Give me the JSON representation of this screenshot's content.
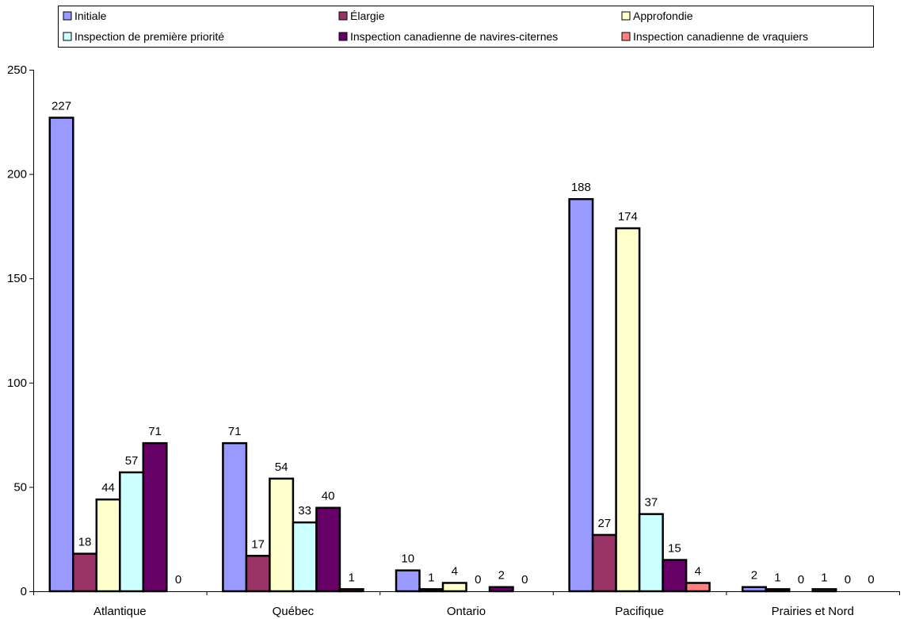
{
  "chart_data": {
    "type": "bar",
    "categories": [
      "Atlantique",
      "Québec",
      "Ontario",
      "Pacifique",
      "Prairies et Nord"
    ],
    "series": [
      {
        "name": "Initiale",
        "color": "#9999ff",
        "values": [
          227,
          71,
          10,
          188,
          2
        ]
      },
      {
        "name": "Élargie",
        "color": "#993366",
        "values": [
          18,
          17,
          1,
          27,
          1
        ]
      },
      {
        "name": "Approfondie",
        "color": "#ffffcc",
        "values": [
          44,
          54,
          4,
          174,
          0
        ]
      },
      {
        "name": "Inspection de première priorité",
        "color": "#ccffff",
        "values": [
          57,
          33,
          0,
          37,
          1
        ]
      },
      {
        "name": "Inspection canadienne de navires-citernes",
        "color": "#660066",
        "values": [
          71,
          40,
          2,
          15,
          0
        ]
      },
      {
        "name": "Inspection canadienne de vraquiers",
        "color": "#ff8080",
        "values": [
          0,
          1,
          0,
          4,
          0
        ]
      }
    ],
    "ylim": [
      0,
      250
    ],
    "yticks": [
      0,
      50,
      100,
      150,
      200,
      250
    ],
    "legend_position": "top",
    "grid": false
  }
}
